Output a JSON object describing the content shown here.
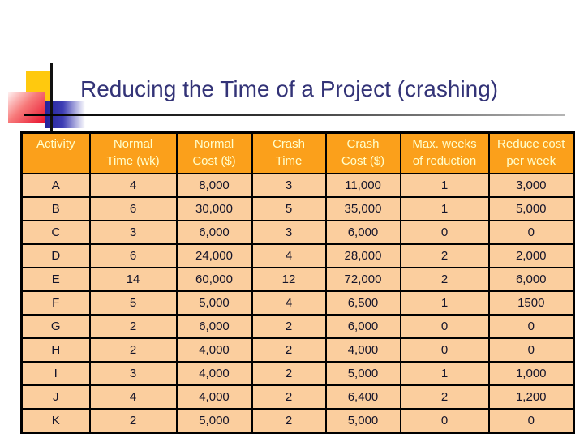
{
  "slide": {
    "title": "Reducing the Time of a Project (crashing)"
  },
  "table": {
    "headers": [
      "Activity",
      "Normal\nTime (wk)",
      "Normal\nCost ($)",
      "Crash\nTime",
      "Crash\nCost ($)",
      "Max. weeks\nof reduction",
      "Reduce cost\nper week"
    ],
    "rows": [
      [
        "A",
        "4",
        "8,000",
        "3",
        "11,000",
        "1",
        "3,000"
      ],
      [
        "B",
        "6",
        "30,000",
        "5",
        "35,000",
        "1",
        "5,000"
      ],
      [
        "C",
        "3",
        "6,000",
        "3",
        "6,000",
        "0",
        "0"
      ],
      [
        "D",
        "6",
        "24,000",
        "4",
        "28,000",
        "2",
        "2,000"
      ],
      [
        "E",
        "14",
        "60,000",
        "12",
        "72,000",
        "2",
        "6,000"
      ],
      [
        "F",
        "5",
        "5,000",
        "4",
        "6,500",
        "1",
        "1500"
      ],
      [
        "G",
        "2",
        "6,000",
        "2",
        "6,000",
        "0",
        "0"
      ],
      [
        "H",
        "2",
        "4,000",
        "2",
        "4,000",
        "0",
        "0"
      ],
      [
        "I",
        "3",
        "4,000",
        "2",
        "5,000",
        "1",
        "1,000"
      ],
      [
        "J",
        "4",
        "4,000",
        "2",
        "6,400",
        "2",
        "1,200"
      ],
      [
        "K",
        "2",
        "5,000",
        "2",
        "5,000",
        "0",
        "0"
      ]
    ]
  },
  "colors": {
    "title_text": "#333377",
    "header_bg": "#FBA01B",
    "header_text": "#FFFFCC",
    "cell_bg": "#FBCE9E",
    "cell_text": "#14142A",
    "accent_yellow": "#FFC90E",
    "accent_red": "#E8112D",
    "accent_blue": "#22229A",
    "table_border": "#000000"
  }
}
